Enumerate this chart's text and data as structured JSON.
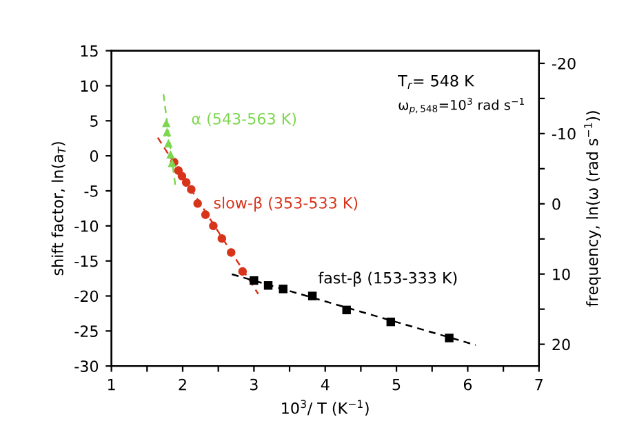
{
  "chart_data": {
    "type": "scatter",
    "xlabel": "10$^{3}$/ T (K$^{−1}$)",
    "ylabel": "shift factor, ln(a$_{T}$)",
    "y2label": "frequency, ln(ω (rad s$^{−1}$))",
    "xlim": [
      1,
      7
    ],
    "xticks": [
      1,
      {
        "value": 1.5,
        "label": null
      },
      2,
      {
        "value": 2.5,
        "label": null
      },
      3,
      {
        "value": 3.5,
        "label": null
      },
      4,
      {
        "value": 4.5,
        "label": null
      },
      5,
      {
        "value": 5.5,
        "label": null
      },
      6,
      {
        "value": 6.5,
        "label": null
      },
      7
    ],
    "ylim": [
      -30,
      15
    ],
    "yticks": [
      -30,
      -25,
      -20,
      -15,
      -10,
      -5,
      0,
      5,
      10,
      15
    ],
    "y2lim": [
      23.1,
      -21.8
    ],
    "y2ticks": [
      20,
      {
        "value": 15,
        "label": null
      },
      10,
      {
        "value": 5,
        "label": null
      },
      0,
      {
        "value": -5,
        "label": null
      },
      -10,
      {
        "value": -15,
        "label": null
      },
      -20
    ],
    "grid": false,
    "legend": false,
    "series": [
      {
        "name": "α (543-563 K)",
        "color": "#7dd64f",
        "marker": "triangle",
        "x": [
          1.77,
          1.78,
          1.8,
          1.83,
          1.85
        ],
        "values": [
          4.7,
          3.4,
          1.8,
          0.2,
          -1.0
        ]
      },
      {
        "name": "slow-β (353-533 K)",
        "color": "#d8341b",
        "marker": "circle",
        "x": [
          1.88,
          1.94,
          1.99,
          2.05,
          2.12,
          2.21,
          2.32,
          2.43,
          2.55,
          2.68,
          2.84
        ],
        "values": [
          -0.9,
          -2.1,
          -2.9,
          -3.8,
          -4.8,
          -6.8,
          -8.4,
          -10.0,
          -11.8,
          -13.8,
          -16.5
        ]
      },
      {
        "name": "fast-β (153-333 K)",
        "color": "#000000",
        "marker": "square",
        "x": [
          3.0,
          3.2,
          3.41,
          3.82,
          4.3,
          4.92,
          5.74
        ],
        "values": [
          -17.8,
          -18.5,
          -19.0,
          -20.0,
          -22.0,
          -23.7,
          -26.0
        ]
      },
      {
        "type": "line",
        "color": "#7dd64f",
        "line_style": "dashed",
        "x": [
          1.73,
          1.9
        ],
        "values": [
          8.8,
          -4.5
        ]
      },
      {
        "type": "line",
        "color": "#d8341b",
        "line_style": "dashed",
        "x": [
          1.65,
          3.06
        ],
        "values": [
          2.6,
          -19.7
        ]
      },
      {
        "type": "line",
        "color": "#000000",
        "line_style": "dashed",
        "x": [
          2.69,
          6.11
        ],
        "values": [
          -16.9,
          -27.0
        ]
      }
    ],
    "annotations": [
      "T$_{r}$= 548 K",
      "ω$_{p,548}$=10$^{3}$ rad s$^{−1}$"
    ]
  }
}
